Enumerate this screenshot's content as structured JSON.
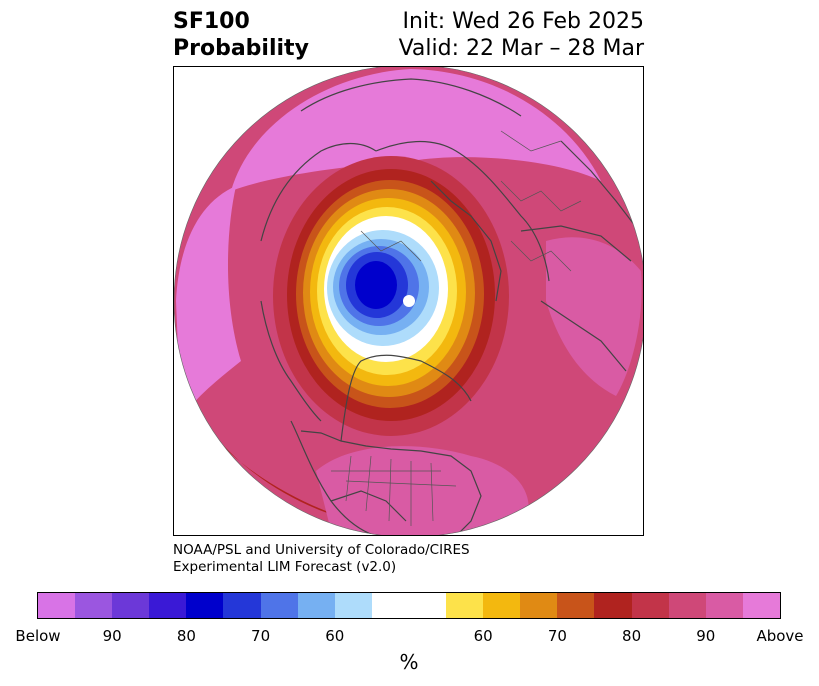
{
  "title": {
    "left_line1": "SF100",
    "left_line2": "Probability",
    "right_line1": "Init: Wed 26 Feb 2025",
    "right_line2": "Valid: 22 Mar – 28 Mar"
  },
  "credit": {
    "line1": "NOAA/PSL and University of Colorado/CIRES",
    "line2": "Experimental LIM Forecast (v2.0)"
  },
  "colorbar": {
    "colors": [
      "#d873e6",
      "#9b56e0",
      "#6c38d8",
      "#3a19d6",
      "#0000cc",
      "#2437d8",
      "#4f74e8",
      "#76b0f2",
      "#aedcfb",
      "#ffffff",
      "#ffffff",
      "#fde24a",
      "#f3b80f",
      "#e08a14",
      "#c8541a",
      "#b0231f",
      "#c23449",
      "#cf4878",
      "#d95ba4",
      "#e67ad9"
    ],
    "labels": [
      "Below",
      "90",
      "80",
      "70",
      "60",
      "60",
      "70",
      "80",
      "90",
      "Above"
    ],
    "unit": "%"
  },
  "map": {
    "projection": "north-polar-stereographic",
    "region": "Northern Hemisphere",
    "dominant_category": "Above",
    "below_center_region": "Arctic / northern Siberia"
  }
}
